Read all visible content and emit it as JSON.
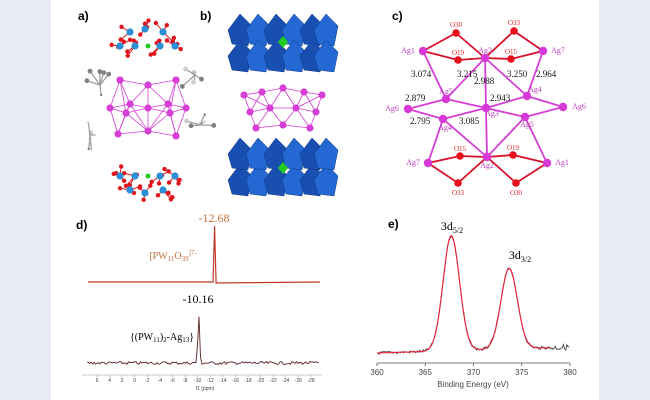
{
  "colors": {
    "background": "#e8eaf6",
    "panel": "#ffffff",
    "silver": "#d63fd6",
    "oxygen": "#e0141a",
    "tungsten": "#2a8fd6",
    "polyhedra": "#1f5fc8",
    "phosphorus": "#22cc22",
    "carbon": "#808080",
    "nmr_top": "#c0392b",
    "nmr_label_top": "#c8703a",
    "xps_fit": "#e8283c",
    "xps_raw": "#333333"
  },
  "panels": {
    "a": {
      "label": "a)"
    },
    "b": {
      "label": "b)"
    },
    "c": {
      "label": "c)",
      "atoms": [
        "O30",
        "O33",
        "Ag1",
        "Ag2",
        "O19",
        "O15",
        "Ag7",
        "Ag5",
        "Ag4",
        "Ag6",
        "Ag3",
        "Ag6",
        "Ag4",
        "Ag5",
        "O15",
        "O19",
        "Ag7",
        "Ag2",
        "Ag1",
        "O33",
        "O30"
      ],
      "distances": [
        "3.074",
        "3.215",
        "2.988",
        "3.250",
        "2.964",
        "2.879",
        "2.943",
        "2.795",
        "3.085"
      ]
    },
    "d": {
      "label": "d)"
    },
    "e": {
      "label": "e)"
    }
  },
  "chart_data": [
    {
      "type": "line",
      "panel": "d",
      "xlabel": "f1 (ppm)",
      "xlim": [
        7,
        -29
      ],
      "xticks": [
        "6",
        "4",
        "2",
        "0",
        "-2",
        "-4",
        "-6",
        "-8",
        "-10",
        "-12",
        "-14",
        "-16",
        "-18",
        "-20",
        "-22",
        "-24",
        "-26",
        "-28"
      ],
      "series": [
        {
          "name": "[PW11O39]7-",
          "name_main": "[PW",
          "name_sub": "11",
          "name_mid": "O",
          "name_sub2": "39",
          "name_sup": "]7-",
          "peak": -12.68,
          "peak_label": "-12.68",
          "color": "#c0392b"
        },
        {
          "name": "{(PW11)2-Ag13}",
          "name_main": "{(PW",
          "name_sub": "11",
          "name_mid": ")",
          "name_sub2": "2",
          "name_end": "-Ag",
          "name_sub3": "13",
          "name_close": "}",
          "peak": -10.16,
          "peak_label": "-10.16",
          "color": "#5a2020"
        }
      ]
    },
    {
      "type": "line",
      "panel": "e",
      "xlabel": "Binding Energy (eV)",
      "xlim": [
        360,
        380
      ],
      "xticks": [
        "360",
        "365",
        "370",
        "375",
        "380"
      ],
      "peaks": [
        {
          "label_main": "3d",
          "label_sub": "5/2",
          "position": 367.7,
          "relative_intensity": 1.0
        },
        {
          "label_main": "3d",
          "label_sub": "3/2",
          "position": 373.7,
          "relative_intensity": 0.7
        }
      ]
    }
  ]
}
